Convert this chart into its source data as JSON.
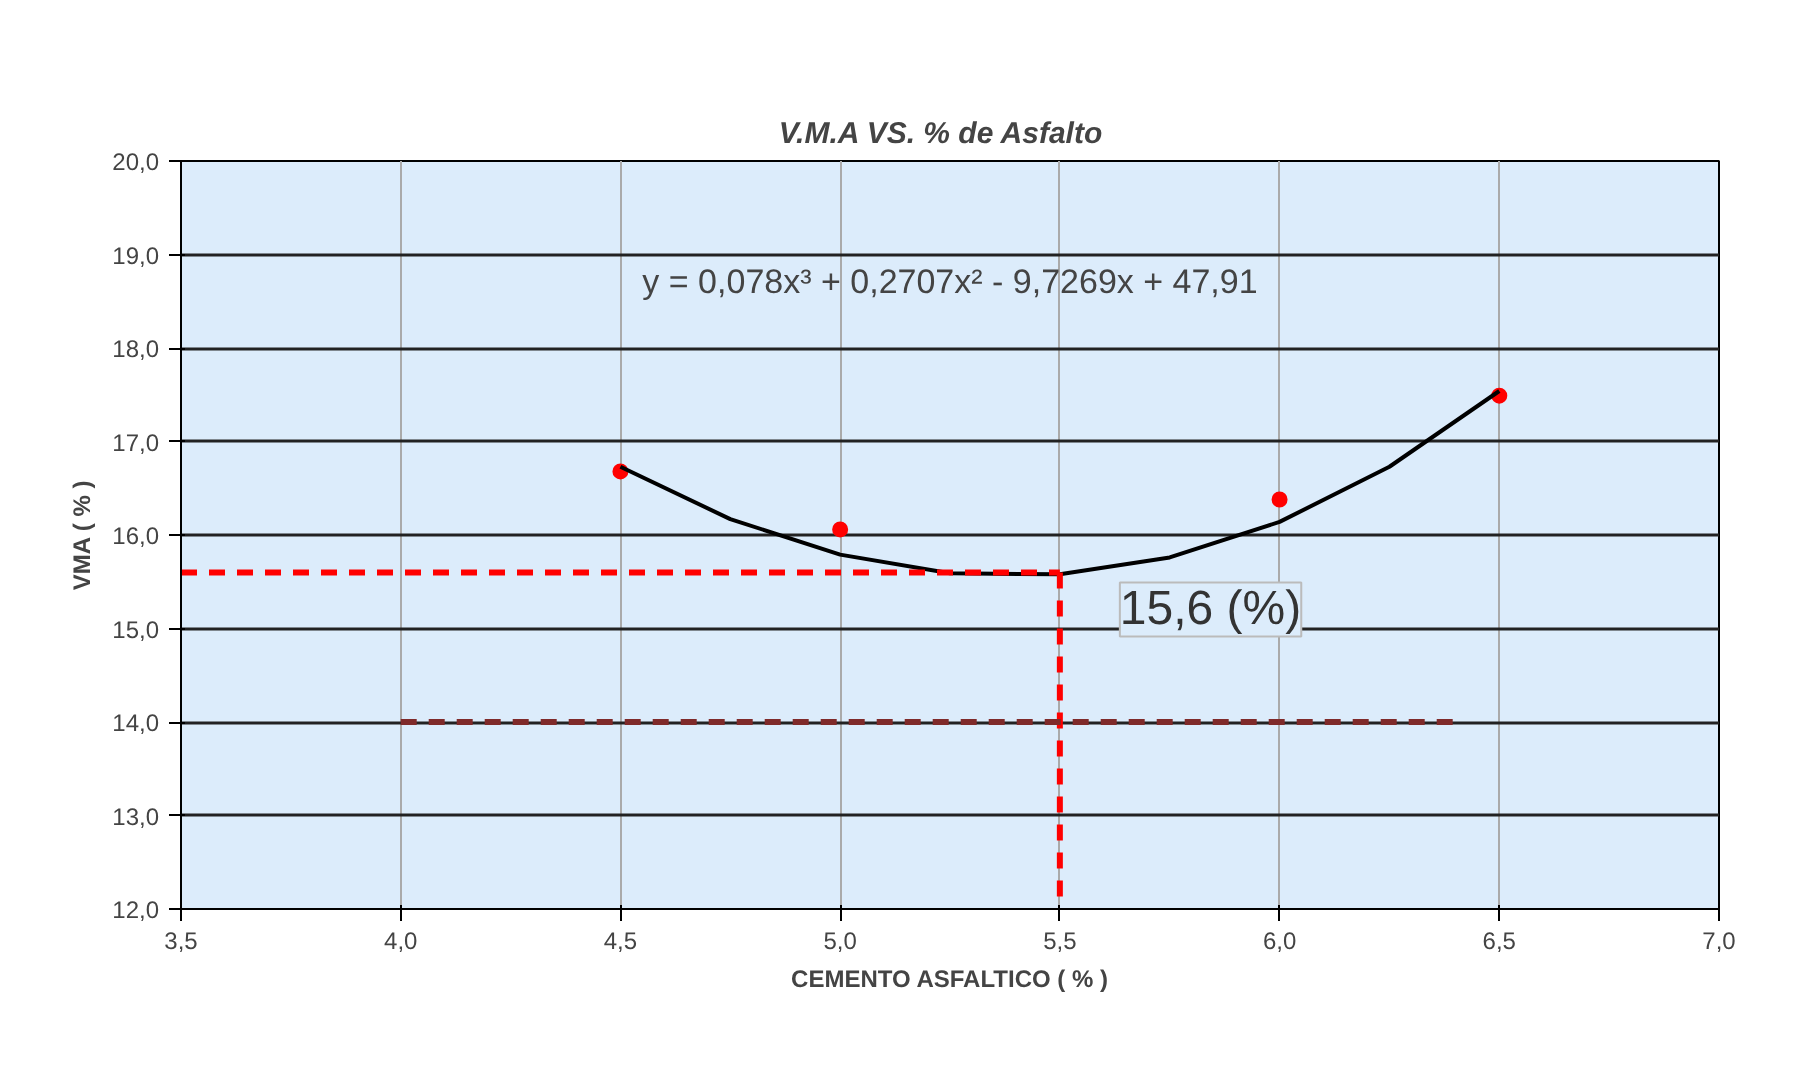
{
  "chart_data": {
    "type": "scatter",
    "title": "V.M.A  VS.  % de Asfalto",
    "xlabel": "CEMENTO ASFALTICO ( % )",
    "ylabel": "VMA ( % )",
    "xlim": [
      3.5,
      7.0
    ],
    "ylim": [
      12.0,
      20.0
    ],
    "xticks": [
      {
        "value": 3.5,
        "label": "3,5"
      },
      {
        "value": 4.0,
        "label": "4,0"
      },
      {
        "value": 4.5,
        "label": "4,5"
      },
      {
        "value": 5.0,
        "label": "5,0"
      },
      {
        "value": 5.5,
        "label": "5,5"
      },
      {
        "value": 6.0,
        "label": "6,0"
      },
      {
        "value": 6.5,
        "label": "6,5"
      },
      {
        "value": 7.0,
        "label": "7,0"
      }
    ],
    "yticks": [
      {
        "value": 12,
        "label": "12,0"
      },
      {
        "value": 13,
        "label": "13,0"
      },
      {
        "value": 14,
        "label": "14,0"
      },
      {
        "value": 15,
        "label": "15,0"
      },
      {
        "value": 16,
        "label": "16,0"
      },
      {
        "value": 17,
        "label": "17,0"
      },
      {
        "value": 18,
        "label": "18,0"
      },
      {
        "value": 19,
        "label": "19,0"
      },
      {
        "value": 20,
        "label": "20,0"
      }
    ],
    "grid": true,
    "series": [
      {
        "marker": "circle",
        "color": "#ff0000",
        "x": [
          4.5,
          5.0,
          6.0,
          6.5
        ],
        "values": [
          16.68,
          16.06,
          16.38,
          17.49
        ]
      },
      {
        "type": "line",
        "marker": "none",
        "color": "#000000",
        "line_style": "solid",
        "x": [
          4.5,
          4.75,
          5.0,
          5.25,
          5.5,
          5.75,
          6.0,
          6.25,
          6.5
        ],
        "values": [
          16.73,
          16.17,
          15.79,
          15.59,
          15.58,
          15.76,
          16.14,
          16.73,
          17.54
        ]
      },
      {
        "type": "line",
        "marker": "none",
        "color": "#ff0000",
        "line_style": "dashed",
        "x": [
          3.5,
          5.5
        ],
        "values": [
          15.6,
          15.6
        ]
      },
      {
        "type": "line",
        "marker": "none",
        "color": "#ff0000",
        "line_style": "dashed",
        "x": [
          5.5,
          5.5
        ],
        "values": [
          15.6,
          12.0
        ]
      },
      {
        "type": "line",
        "marker": "none",
        "color": "#7f2a2a",
        "line_style": "dashed",
        "x": [
          4.0,
          6.4
        ],
        "values": [
          14.0,
          14.0
        ]
      }
    ],
    "annotations": [
      "y = 0,078x³ + 0,2707x² - 9,7269x + 47,91",
      {
        "text": "15,6 (%)",
        "x": 5.5,
        "y": 15.6
      }
    ]
  }
}
